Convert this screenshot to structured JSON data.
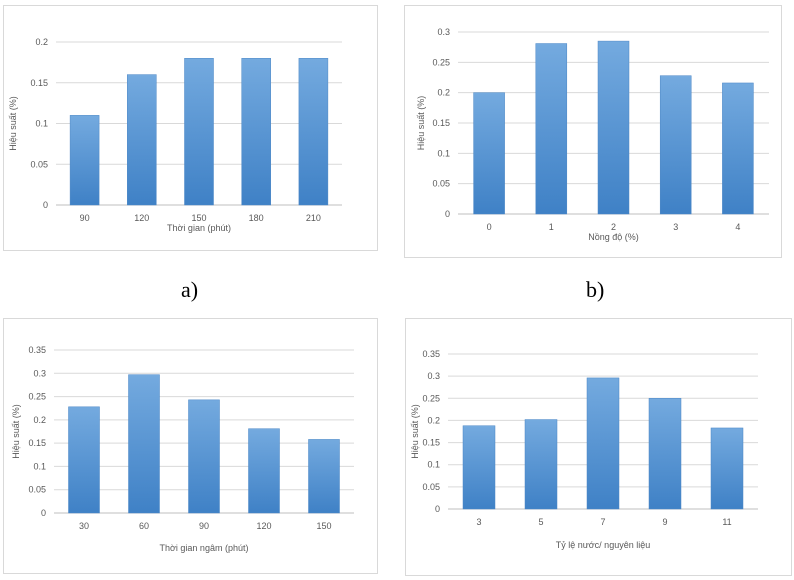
{
  "captions": {
    "a": "a)",
    "b": "b)"
  },
  "chart_data": [
    {
      "type": "bar",
      "categories": [
        "90",
        "120",
        "150",
        "180",
        "210"
      ],
      "values": [
        0.11,
        0.16,
        0.18,
        0.18,
        0.18
      ],
      "yticks": [
        "0",
        "0.05",
        "0.1",
        "0.15",
        "0.2"
      ],
      "ylim": [
        0,
        0.2
      ],
      "xlabel": "Thời gian (phút)",
      "ylabel": "Hiệu suất (%)",
      "grid": true,
      "bar_color": "#5b9bd5"
    },
    {
      "type": "bar",
      "categories": [
        "0",
        "1",
        "2",
        "3",
        "4"
      ],
      "values": [
        0.2,
        0.281,
        0.285,
        0.228,
        0.216
      ],
      "yticks": [
        "0",
        "0.05",
        "0.1",
        "0.15",
        "0.2",
        "0.25",
        "0.3"
      ],
      "ylim": [
        0,
        0.3
      ],
      "xlabel": "Nồng độ (%)",
      "ylabel": "Hiệu suất (%)",
      "grid": true,
      "bar_color": "#5b9bd5"
    },
    {
      "type": "bar",
      "categories": [
        "30",
        "60",
        "90",
        "120",
        "150"
      ],
      "values": [
        0.228,
        0.297,
        0.243,
        0.181,
        0.158
      ],
      "yticks": [
        "0",
        "0.05",
        "0.1",
        "0.15",
        "0.2",
        "0.25",
        "0.3",
        "0.35"
      ],
      "ylim": [
        0,
        0.35
      ],
      "xlabel": "Thời gian ngâm (phút)",
      "ylabel": "Hiệu suất (%)",
      "grid": true,
      "bar_color": "#5b9bd5"
    },
    {
      "type": "bar",
      "categories": [
        "3",
        "5",
        "7",
        "9",
        "11"
      ],
      "values": [
        0.188,
        0.202,
        0.296,
        0.25,
        0.183
      ],
      "yticks": [
        "0",
        "0.05",
        "0.1",
        "0.15",
        "0.2",
        "0.25",
        "0.3",
        "0.35"
      ],
      "ylim": [
        0,
        0.35
      ],
      "xlabel": "Tỷ lệ nước/ nguyên liệu",
      "ylabel": "Hiệu suất (%)",
      "grid": true,
      "bar_color": "#5b9bd5"
    }
  ]
}
